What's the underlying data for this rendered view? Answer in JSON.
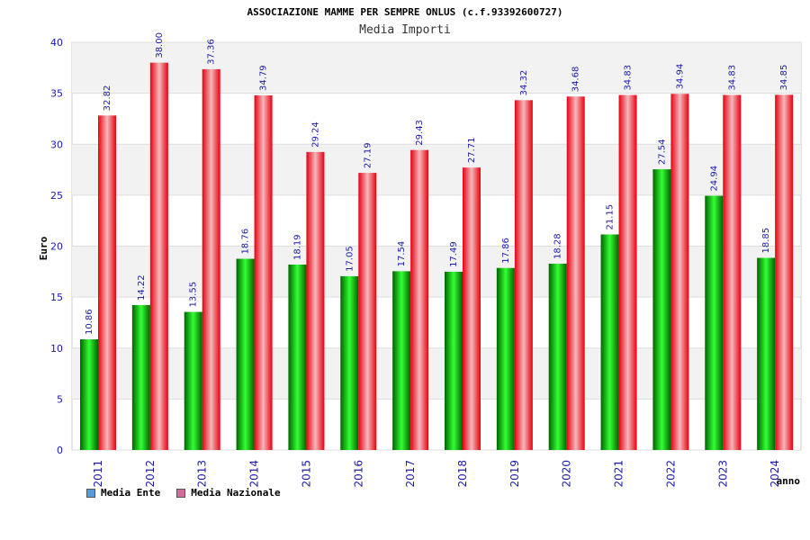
{
  "chart_data": {
    "type": "bar",
    "title": "ASSOCIAZIONE MAMME PER SEMPRE ONLUS (c.f.93392600727)",
    "subtitle": "Media Importi",
    "xlabel": "anno",
    "ylabel": "Euro",
    "ylim": [
      0,
      40
    ],
    "yticks": [
      0,
      5,
      10,
      15,
      20,
      25,
      30,
      35,
      40
    ],
    "grid": true,
    "legend_position": "bottom-left",
    "categories": [
      "2011",
      "2012",
      "2013",
      "2014",
      "2015",
      "2016",
      "2017",
      "2018",
      "2019",
      "2020",
      "2021",
      "2022",
      "2023",
      "2024"
    ],
    "series": [
      {
        "name": "Media Ente",
        "color": "#00a000",
        "legend_color": "#5b9bd5",
        "values": [
          10.86,
          14.22,
          13.55,
          18.76,
          18.19,
          17.05,
          17.54,
          17.49,
          17.86,
          18.28,
          21.15,
          27.54,
          24.94,
          18.85
        ],
        "labels": [
          "10.86",
          "14.22",
          "13.55",
          "18.76",
          "18.19",
          "17.05",
          "17.54",
          "17.49",
          "17.86",
          "18.28",
          "21.15",
          "27.54",
          "24.94",
          "18.85"
        ]
      },
      {
        "name": "Media Nazionale",
        "color": "#e8000f",
        "legend_color": "#d56b9b",
        "values": [
          32.82,
          38.0,
          37.36,
          34.79,
          29.24,
          27.19,
          29.43,
          27.71,
          34.32,
          34.68,
          34.83,
          34.94,
          34.83,
          34.85
        ],
        "labels": [
          "32.82",
          "38.00",
          "37.36",
          "34.79",
          "29.24",
          "27.19",
          "29.43",
          "27.71",
          "34.32",
          "34.68",
          "34.83",
          "34.94",
          "34.83",
          "34.85"
        ]
      }
    ]
  }
}
